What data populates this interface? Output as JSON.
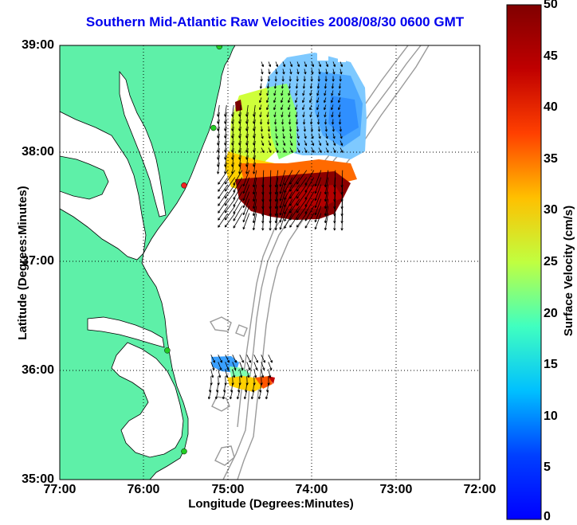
{
  "map": {
    "title": "Southern Mid-Atlantic Raw Velocities 2008/08/30 0600 GMT",
    "xlabel": "Longitude (Degrees:Minutes)",
    "ylabel": "Latitude (Degrees:Minutes)",
    "x_ticks": [
      "77:00",
      "76:00",
      "75:00",
      "74:00",
      "73:00",
      "72:00"
    ],
    "y_ticks": [
      "39:00",
      "38:00",
      "37:00",
      "36:00",
      "35:00"
    ],
    "lon_range": [
      -77,
      -72
    ],
    "lat_range": [
      35,
      39
    ],
    "land_color": "#5ef0a8",
    "contour_color": "#999999"
  },
  "colorbar": {
    "label": "Surface Velocity (cm/s)",
    "ticks": [
      "50",
      "45",
      "40",
      "35",
      "30",
      "25",
      "20",
      "15",
      "10",
      "5",
      "0"
    ],
    "range": [
      0,
      50
    ],
    "colormap": "jet"
  },
  "stations": [
    {
      "lon": -75.1,
      "lat": 38.99,
      "color": "#22cc22"
    },
    {
      "lon": -75.17,
      "lat": 38.24,
      "color": "#22cc22"
    },
    {
      "lon": -75.52,
      "lat": 37.71,
      "color": "#ee2222"
    },
    {
      "lon": -75.72,
      "lat": 36.19,
      "color": "#22cc22"
    },
    {
      "lon": -75.52,
      "lat": 35.26,
      "color": "#22cc22"
    }
  ],
  "chart_data": {
    "type": "heatmap",
    "title": "Southern Mid-Atlantic Raw Velocities 2008/08/30 0600 GMT",
    "xlabel": "Longitude (Degrees:Minutes)",
    "ylabel": "Latitude (Degrees:Minutes)",
    "xlim": [
      -77,
      -72
    ],
    "ylim": [
      35,
      39
    ],
    "value_label": "Surface Velocity (cm/s)",
    "value_range": [
      0,
      50
    ],
    "regions": [
      {
        "name_desc": "northern field, north part",
        "lon_range": [
          -74.6,
          -73.6
        ],
        "lat_range": [
          38.0,
          38.85
        ],
        "speed_cm_s": 8
      },
      {
        "name_desc": "northern field, west part",
        "lon_range": [
          -75.1,
          -74.6
        ],
        "lat_range": [
          37.9,
          38.45
        ],
        "speed_cm_s": 30
      },
      {
        "name_desc": "northern field, south jet",
        "lon_range": [
          -75.0,
          -73.6
        ],
        "lat_range": [
          37.4,
          37.85
        ],
        "speed_cm_s": 50
      },
      {
        "name_desc": "southern patch",
        "lon_range": [
          -75.2,
          -74.5
        ],
        "lat_range": [
          35.8,
          36.15
        ],
        "speed_cm_s": 20
      }
    ]
  }
}
